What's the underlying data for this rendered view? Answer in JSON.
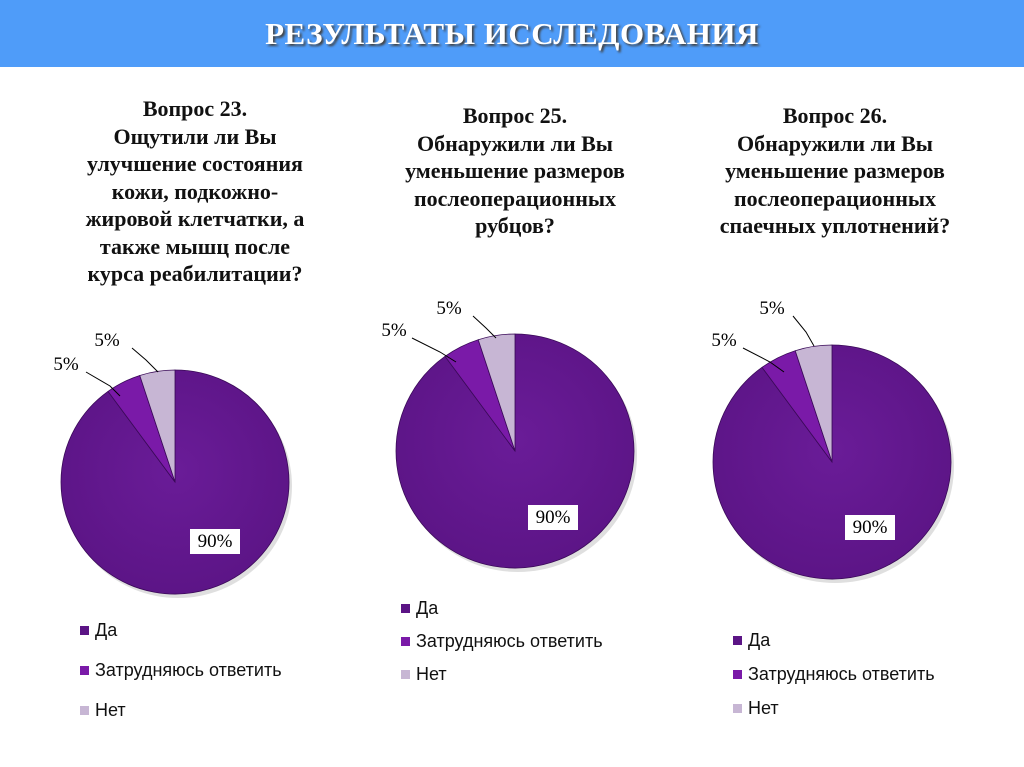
{
  "header": {
    "title": "РЕЗУЛЬТАТЫ ИССЛЕДОВАНИЯ"
  },
  "colors": {
    "header_bg": "#4f9cf9",
    "yes": "#5b1485",
    "unsure": "#7a1aa8",
    "no": "#c7b6d4"
  },
  "legend_labels": [
    "Да",
    "Затрудняюсь ответить",
    "Нет"
  ],
  "chart_data": [
    {
      "type": "pie",
      "title_lines": [
        "Вопрос 23.",
        "Ощутили ли Вы",
        "улучшение состояния",
        "кожи, подкожно-",
        "жировой клетчатки, а",
        "также мышц после",
        "курса реабилитации?"
      ],
      "categories": [
        "Да",
        "Затрудняюсь ответить",
        "Нет"
      ],
      "values": [
        90,
        5,
        5
      ],
      "labels": [
        "90%",
        "5%",
        "5%"
      ],
      "legend_placement": "bottom-left"
    },
    {
      "type": "pie",
      "title_lines": [
        "Вопрос 25.",
        "Обнаружили ли Вы",
        "уменьшение размеров",
        "послеоперационных",
        "рубцов?"
      ],
      "categories": [
        "Да",
        "Затрудняюсь ответить",
        "Нет"
      ],
      "values": [
        90,
        5,
        5
      ],
      "labels": [
        "90%",
        "5%",
        "5%"
      ],
      "legend_placement": "bottom-left"
    },
    {
      "type": "pie",
      "title_lines": [
        "Вопрос 26.",
        "Обнаружили ли Вы",
        "уменьшение размеров",
        "послеоперационных",
        "спаечных уплотнений?"
      ],
      "categories": [
        "Да",
        "Затрудняюсь ответить",
        "Нет"
      ],
      "values": [
        90,
        5,
        5
      ],
      "labels": [
        "90%",
        "5%",
        "5%"
      ],
      "legend_placement": "bottom-left"
    }
  ]
}
